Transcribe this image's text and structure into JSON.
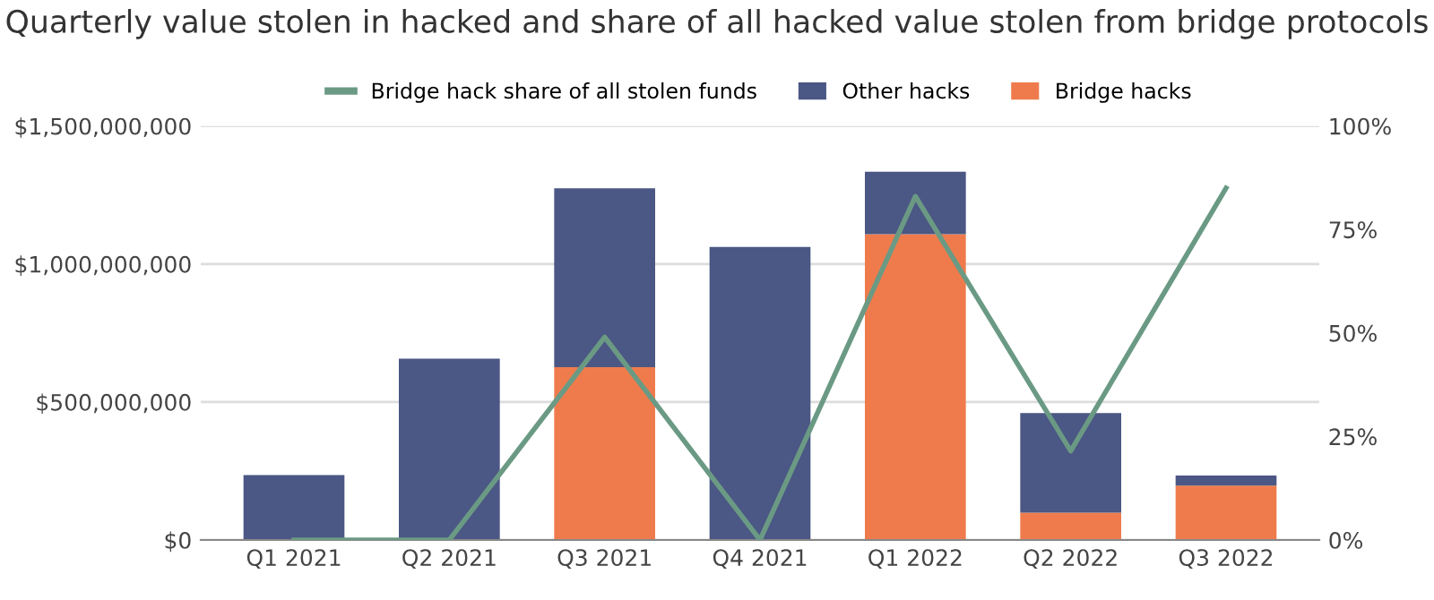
{
  "chart_data": {
    "type": "bar",
    "title": "Quarterly value stolen in hacked and share of all hacked value stolen from bridge protocols",
    "categories": [
      "Q1 2021",
      "Q2 2021",
      "Q3 2021",
      "Q4 2021",
      "Q1 2022",
      "Q2 2022",
      "Q3 2022"
    ],
    "stacked": true,
    "series": [
      {
        "name": "Bridge hacks",
        "color": "#ef7b4d",
        "values": [
          0,
          0,
          626000000,
          0,
          1108000000,
          99000000,
          197000000
        ]
      },
      {
        "name": "Other hacks",
        "color": "#4b5784",
        "values": [
          235000000,
          657000000,
          648000000,
          1062000000,
          226000000,
          361000000,
          37000000
        ]
      },
      {
        "name": "Bridge hack share of all stolen funds",
        "type": "line",
        "axis": "y2",
        "color": "#6b9a84",
        "values": [
          0,
          0,
          49,
          0,
          83,
          21.5,
          85
        ]
      }
    ],
    "ylim": [
      0,
      1500000000
    ],
    "yticks": [
      {
        "value": 0,
        "label": "$0"
      },
      {
        "value": 500000000,
        "label": "$500,000,000"
      },
      {
        "value": 1000000000,
        "label": "$1,000,000,000"
      },
      {
        "value": 1500000000,
        "label": "$1,500,000,000"
      }
    ],
    "y2lim": [
      0,
      100
    ],
    "y2ticks": [
      {
        "value": 0,
        "label": "0%"
      },
      {
        "value": 25,
        "label": "25%"
      },
      {
        "value": 50,
        "label": "50%"
      },
      {
        "value": 75,
        "label": "75%"
      },
      {
        "value": 100,
        "label": "100%"
      }
    ],
    "grid": "y",
    "legend": "top",
    "marker": "none",
    "line_style": "solid"
  }
}
